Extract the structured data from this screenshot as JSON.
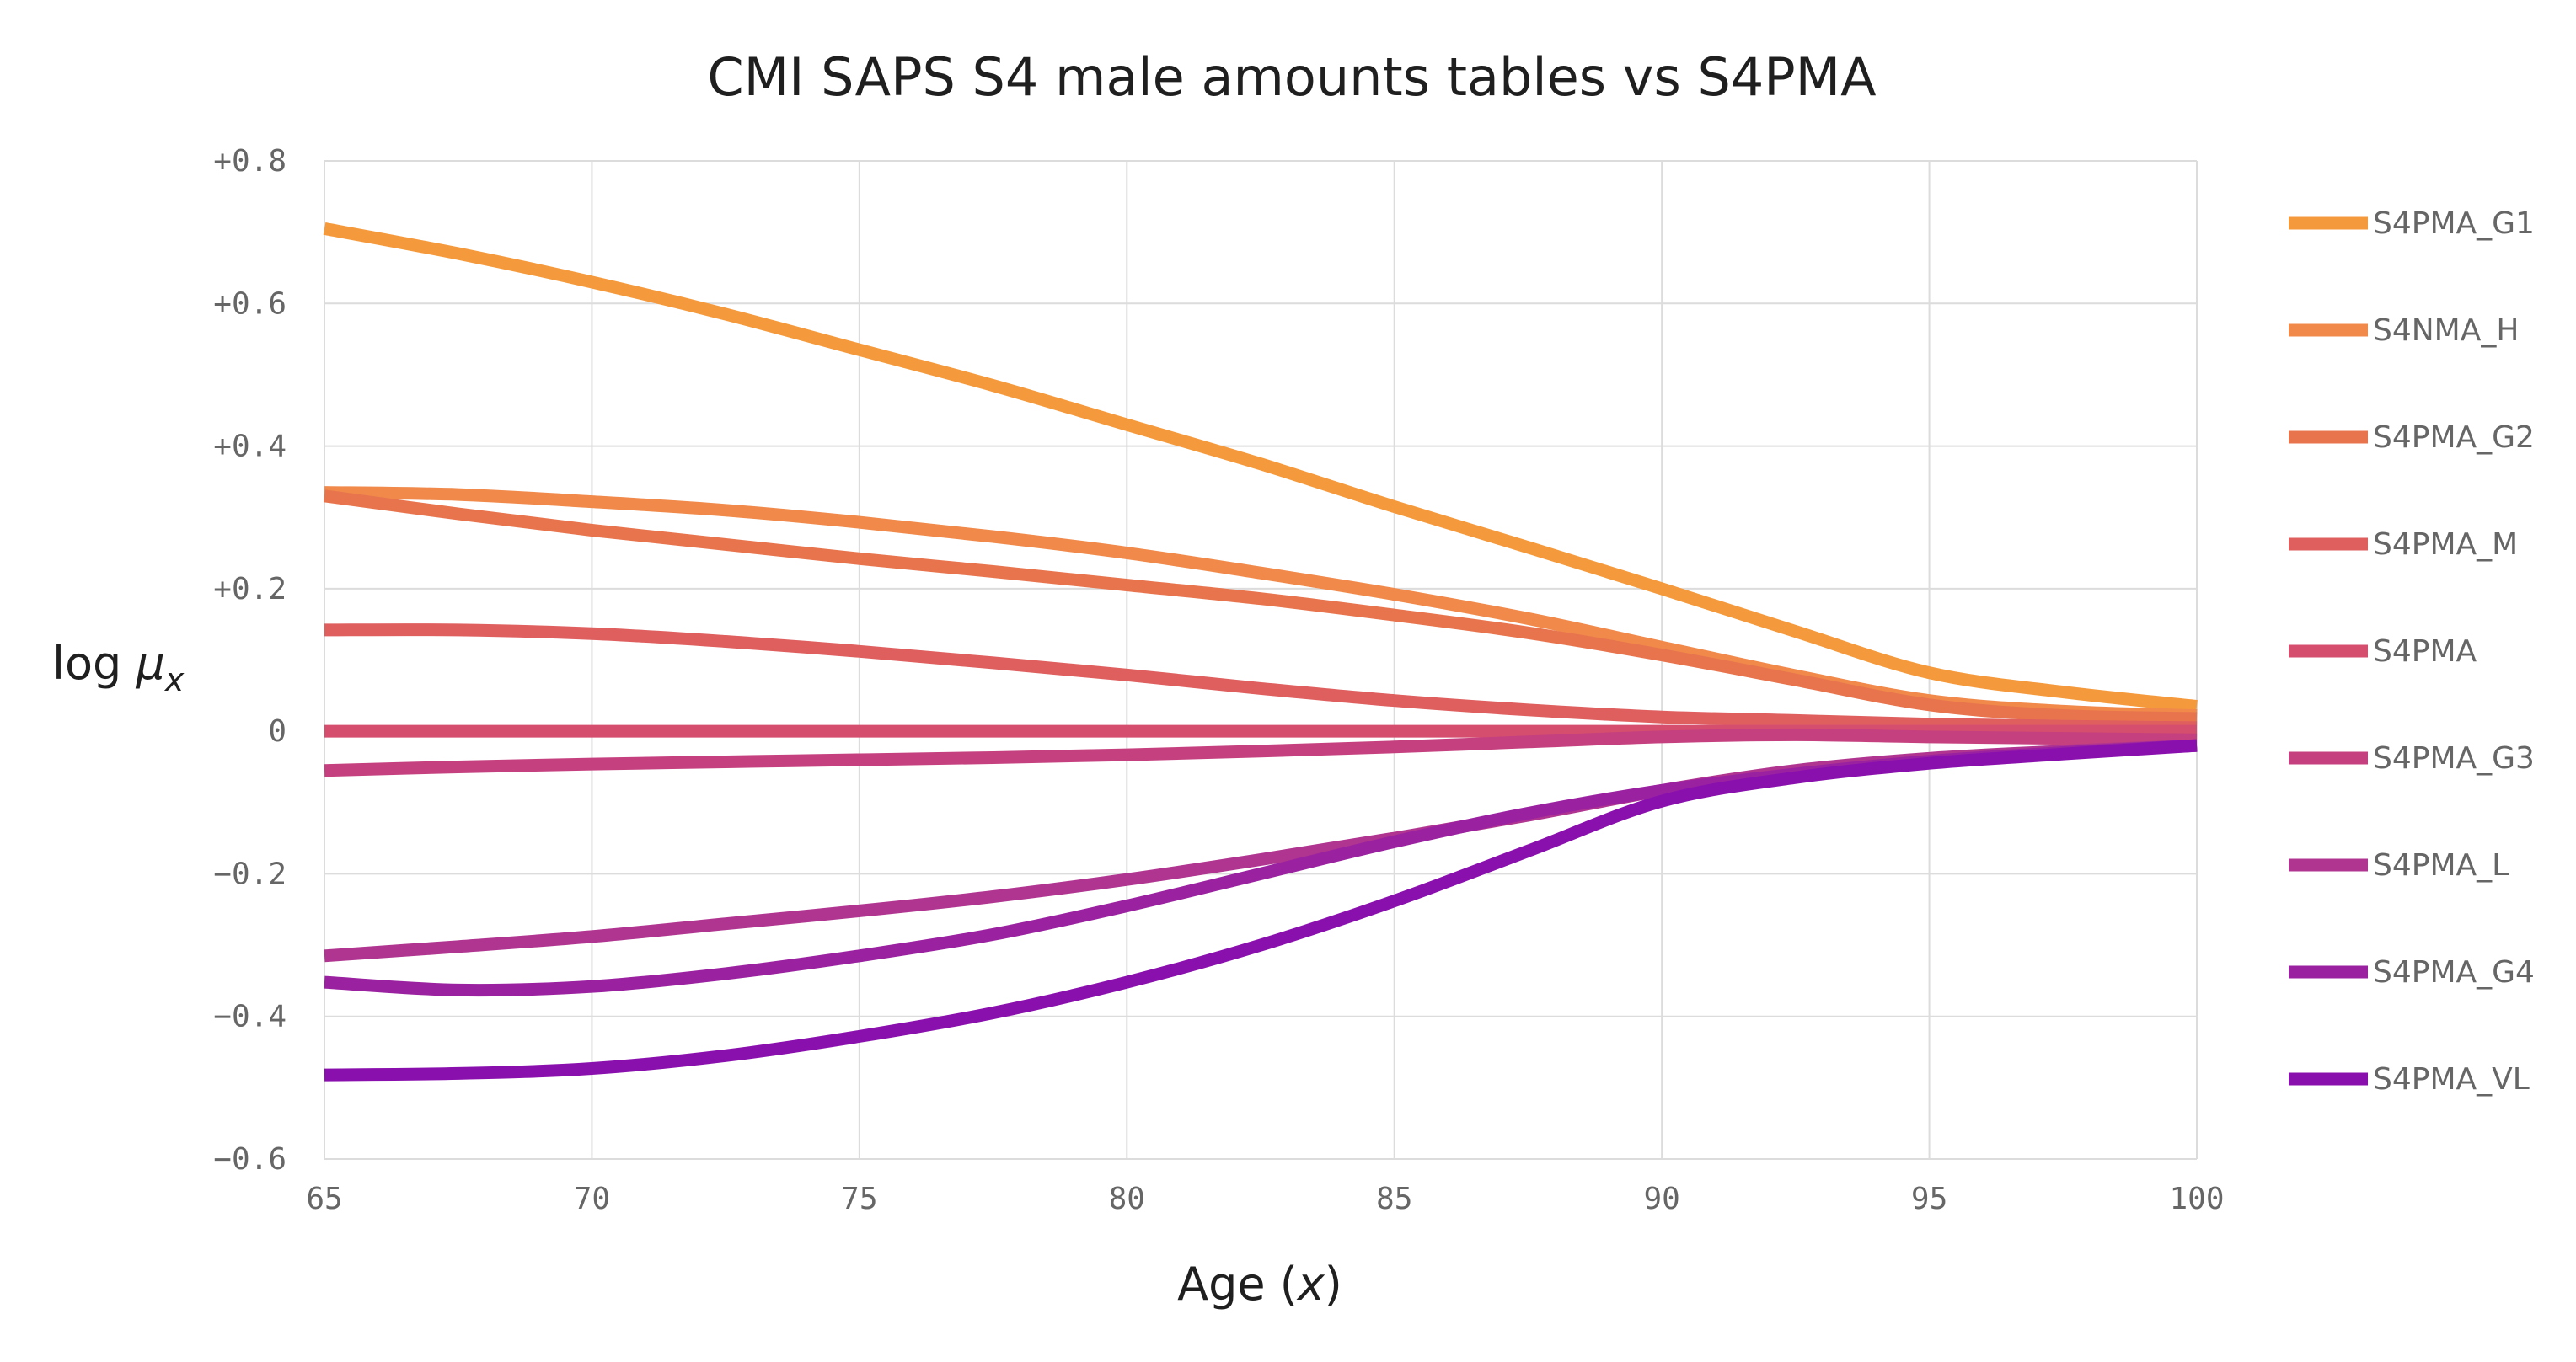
{
  "chart_data": {
    "type": "line",
    "title": "CMI SAPS S4 male amounts tables vs S4PMA",
    "xlabel": "Age (x)",
    "xlabel_parts": {
      "pre": "Age (",
      "var": "x",
      "post": ")"
    },
    "ylabel": "log μx",
    "ylabel_parts": {
      "pre": "log ",
      "var": "μ",
      "sub": "x"
    },
    "xlim": [
      65,
      100
    ],
    "ylim": [
      -0.6,
      0.8
    ],
    "xticks": [
      65,
      70,
      75,
      80,
      85,
      90,
      95,
      100
    ],
    "xtick_labels": [
      "65",
      "70",
      "75",
      "80",
      "85",
      "90",
      "95",
      "100"
    ],
    "yticks": [
      0.8,
      0.6,
      0.4,
      0.2,
      0,
      -0.2,
      -0.4,
      -0.6
    ],
    "ytick_labels": [
      "+0.8",
      "+0.6",
      "+0.4",
      "+0.2",
      "0",
      "−0.2",
      "−0.4",
      "−0.6"
    ],
    "grid": true,
    "legend": "right",
    "x": [
      65,
      67.5,
      70,
      72.5,
      75,
      77.5,
      80,
      82.5,
      85,
      87.5,
      90,
      92.5,
      95,
      97.5,
      100
    ],
    "series": [
      {
        "name": "S4PMA_G1",
        "color": "#f59a3c",
        "values": [
          0.705,
          0.67,
          0.63,
          0.585,
          0.535,
          0.485,
          0.43,
          0.375,
          0.315,
          0.258,
          0.2,
          0.14,
          0.082,
          0.055,
          0.035
        ]
      },
      {
        "name": "S4NMA_H",
        "color": "#f0894a",
        "values": [
          0.335,
          0.332,
          0.322,
          0.31,
          0.293,
          0.273,
          0.25,
          0.222,
          0.192,
          0.158,
          0.118,
          0.078,
          0.043,
          0.028,
          0.022
        ]
      },
      {
        "name": "S4PMA_G2",
        "color": "#e8744e",
        "values": [
          0.33,
          0.305,
          0.282,
          0.262,
          0.242,
          0.224,
          0.205,
          0.186,
          0.163,
          0.138,
          0.107,
          0.072,
          0.037,
          0.022,
          0.018
        ]
      },
      {
        "name": "S4PMA_M",
        "color": "#df5e5e",
        "values": [
          0.142,
          0.142,
          0.137,
          0.126,
          0.112,
          0.096,
          0.079,
          0.06,
          0.043,
          0.03,
          0.02,
          0.015,
          0.01,
          0.007,
          0.005
        ]
      },
      {
        "name": "S4PMA",
        "color": "#d54e6e",
        "values": [
          0,
          0,
          0,
          0,
          0,
          0,
          0,
          0,
          0,
          0,
          0,
          0,
          0,
          0,
          0
        ]
      },
      {
        "name": "S4PMA_G3",
        "color": "#c5407e",
        "values": [
          -0.055,
          -0.05,
          -0.046,
          -0.043,
          -0.04,
          -0.037,
          -0.033,
          -0.028,
          -0.022,
          -0.015,
          -0.008,
          -0.005,
          -0.008,
          -0.01,
          -0.012
        ]
      },
      {
        "name": "S4PMA_L",
        "color": "#b03590",
        "values": [
          -0.315,
          -0.302,
          -0.288,
          -0.27,
          -0.252,
          -0.232,
          -0.208,
          -0.18,
          -0.15,
          -0.118,
          -0.083,
          -0.055,
          -0.038,
          -0.028,
          -0.02
        ]
      },
      {
        "name": "S4PMA_G4",
        "color": "#9a22a0",
        "values": [
          -0.352,
          -0.363,
          -0.358,
          -0.34,
          -0.315,
          -0.285,
          -0.245,
          -0.2,
          -0.155,
          -0.115,
          -0.083,
          -0.06,
          -0.042,
          -0.03,
          -0.02
        ]
      },
      {
        "name": "S4PMA_VL",
        "color": "#8a10ae",
        "values": [
          -0.482,
          -0.48,
          -0.473,
          -0.455,
          -0.428,
          -0.395,
          -0.352,
          -0.3,
          -0.238,
          -0.168,
          -0.098,
          -0.065,
          -0.045,
          -0.032,
          -0.02
        ]
      }
    ]
  }
}
